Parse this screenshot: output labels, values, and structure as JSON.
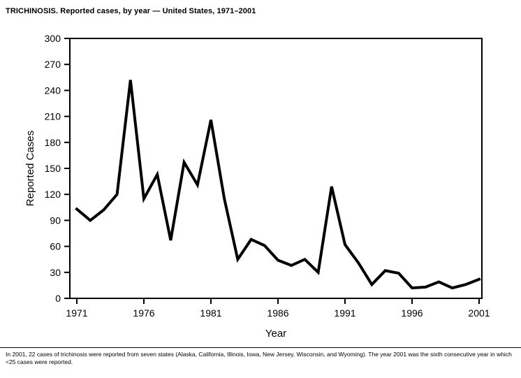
{
  "header": {
    "title": "TRICHINOSIS. Reported cases, by year — United States, 1971–2001"
  },
  "footnote": {
    "text": "In 2001, 22 cases of trichinosis were reported from seven states (Alaska, California, Illinois, Iowa, New Jersey, Wisconsin, and Wyoming). The year 2001 was the sixth consecutive year in which <25 cases were reported."
  },
  "chart_data": {
    "type": "line",
    "title": "TRICHINOSIS. Reported cases, by year — United States, 1971–2001",
    "xlabel": "Year",
    "ylabel": "Reported Cases",
    "ylim": [
      0,
      300
    ],
    "ytick_step": 30,
    "xticks": [
      1971,
      1976,
      1981,
      1986,
      1991,
      1996,
      2001
    ],
    "x": [
      1971,
      1972,
      1973,
      1974,
      1975,
      1976,
      1977,
      1978,
      1979,
      1980,
      1981,
      1982,
      1983,
      1984,
      1985,
      1986,
      1987,
      1988,
      1989,
      1990,
      1991,
      1992,
      1993,
      1994,
      1995,
      1996,
      1997,
      1998,
      1999,
      2000,
      2001
    ],
    "values": [
      103,
      90,
      102,
      120,
      252,
      115,
      143,
      67,
      157,
      131,
      206,
      115,
      45,
      68,
      61,
      44,
      38,
      45,
      30,
      129,
      62,
      41,
      16,
      32,
      29,
      12,
      13,
      19,
      12,
      16,
      22
    ],
    "grid": false,
    "legend": "none",
    "line_color": "#000000",
    "line_width": 4,
    "axis_color": "#000000"
  }
}
